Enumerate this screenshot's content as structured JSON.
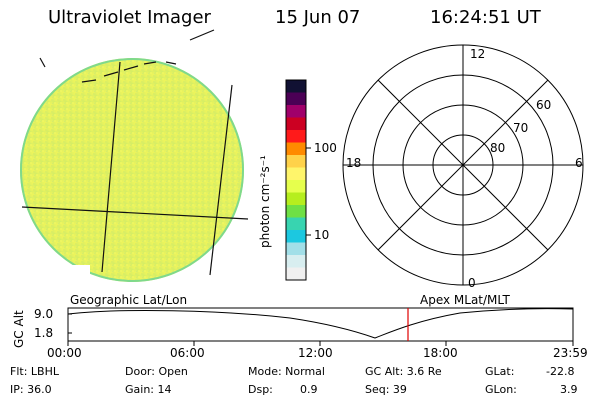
{
  "header": {
    "title": "Ultraviolet Imager",
    "date": "15 Jun 07",
    "time": "16:24:51 UT"
  },
  "colorbar": {
    "unit_label": "photon cm⁻²s⁻¹",
    "ticks": [
      "100",
      "10"
    ],
    "colors": [
      "#111133",
      "#4b0055",
      "#a0006a",
      "#cc0022",
      "#ff1a1a",
      "#ff8a00",
      "#ffd24a",
      "#fff56b",
      "#e6ff4d",
      "#b6ee1e",
      "#6fe045",
      "#38d4b0",
      "#1cc8e0",
      "#a2dfe8",
      "#d8eef0",
      "#f0f0f0"
    ]
  },
  "polar_plot": {
    "mlt_labels": {
      "top": "12",
      "left": "18",
      "right": "6",
      "bottom": "0"
    },
    "lat_labels": [
      "60",
      "70",
      "80"
    ]
  },
  "timeline": {
    "axis_label": "GC Alt",
    "y_ticks": [
      "9.0",
      "1.8"
    ],
    "left_caption": "Geographic Lat/Lon",
    "right_caption": "Apex  MLat/MLT",
    "time_ticks": [
      "00:00",
      "06:00",
      "12:00",
      "18:00",
      "23:59"
    ],
    "marker_color": "#e00000"
  },
  "info": {
    "flt": "Flt: LBHL",
    "ip": "IP: 36.0",
    "door": "Door: Open",
    "gain": "Gain: 14",
    "mode": "Mode: Normal",
    "dsp_label": "Dsp:",
    "dsp_value": "0.9",
    "gc_alt": "GC Alt: 3.6 Re",
    "seq": "Seq: 39",
    "glat_label": "GLat:",
    "glat_value": "-22.8",
    "glon_label": "GLon:",
    "glon_value": "3.9"
  }
}
